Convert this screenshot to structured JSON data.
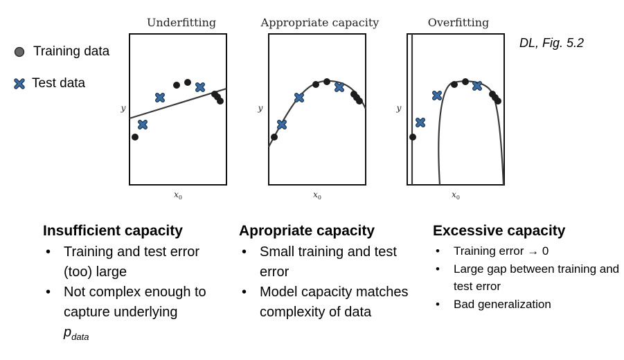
{
  "legend": {
    "training_label": "Training data",
    "test_label": "Test data"
  },
  "citation": "DL, Fig. 5.2",
  "panels": [
    {
      "title": "Underfitting",
      "xlabel": "x0",
      "ylabel": "y"
    },
    {
      "title": "Appropriate capacity",
      "xlabel": "x0",
      "ylabel": "y"
    },
    {
      "title": "Overfitting",
      "xlabel": "x0",
      "ylabel": "y"
    }
  ],
  "columns": [
    {
      "heading": "Insufficient capacity",
      "bullets": [
        "Training and test error (too) large",
        "Not complex enough to capture underlying"
      ],
      "p_symbol": "p",
      "p_subscript": "data"
    },
    {
      "heading": "Apropriate capacity",
      "bullets": [
        "Small training and test error",
        "Model capacity matches complexity of data"
      ]
    },
    {
      "heading": "Excessive capacity",
      "bullets": [
        "Training error → 0",
        "Large gap between training and test error",
        "Bad generalization"
      ]
    }
  ],
  "colors": {
    "train_marker": "#1c1c1c",
    "test_marker": "#2e5b8a",
    "curve": "#3a3a3a"
  }
}
